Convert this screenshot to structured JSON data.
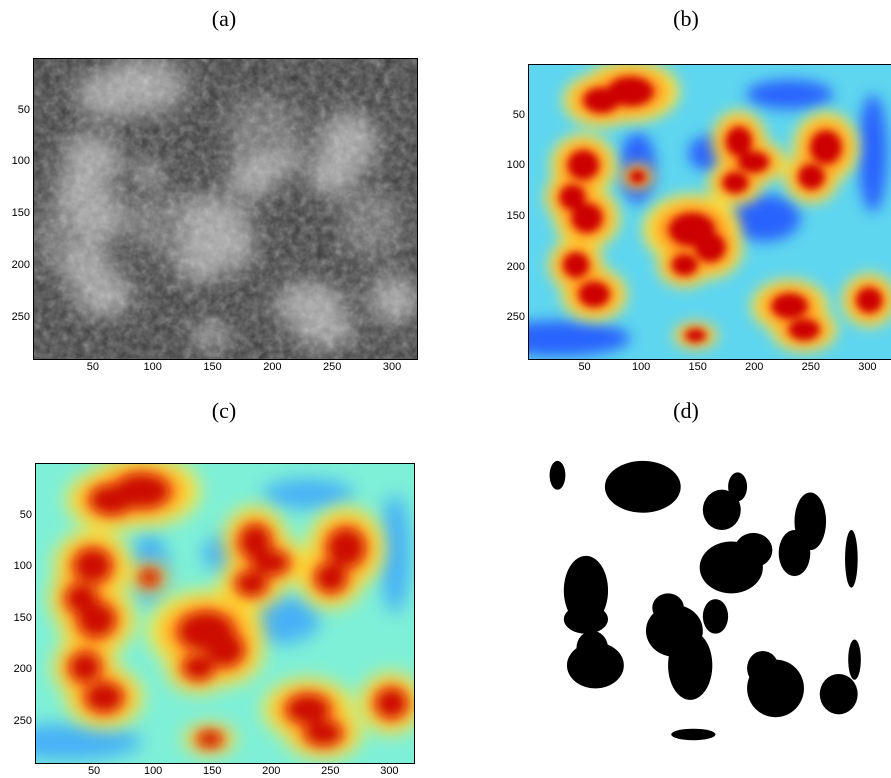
{
  "captions": [
    "(a)",
    "(b)",
    "(c)",
    "(d)"
  ],
  "panels": [
    {
      "id": "a",
      "kind": "grayscale-aerial-forest",
      "x_ticks": [
        "50",
        "100",
        "150",
        "200",
        "250",
        "300"
      ],
      "y_ticks": [
        "50",
        "100",
        "150",
        "200",
        "250"
      ]
    },
    {
      "id": "b",
      "kind": "jet-heatmap-fine",
      "x_ticks": [
        "50",
        "100",
        "150",
        "200",
        "250",
        "300"
      ],
      "y_ticks": [
        "50",
        "100",
        "150",
        "200",
        "250"
      ]
    },
    {
      "id": "c",
      "kind": "jet-heatmap-smooth",
      "x_ticks": [
        "50",
        "100",
        "150",
        "200",
        "250",
        "300"
      ],
      "y_ticks": [
        "50",
        "100",
        "150",
        "200",
        "250"
      ]
    },
    {
      "id": "d",
      "kind": "binary-mask",
      "x_ticks": [],
      "y_ticks": []
    }
  ],
  "colors": {
    "gray_dark": "#2e2e2e",
    "gray_light": "#b8b8b8",
    "jet_low": "#1f4fff",
    "jet_mid": "#7fffd0",
    "jet_high": "#cc0000",
    "mask_fg": "#000000",
    "mask_bg": "#ffffff"
  }
}
